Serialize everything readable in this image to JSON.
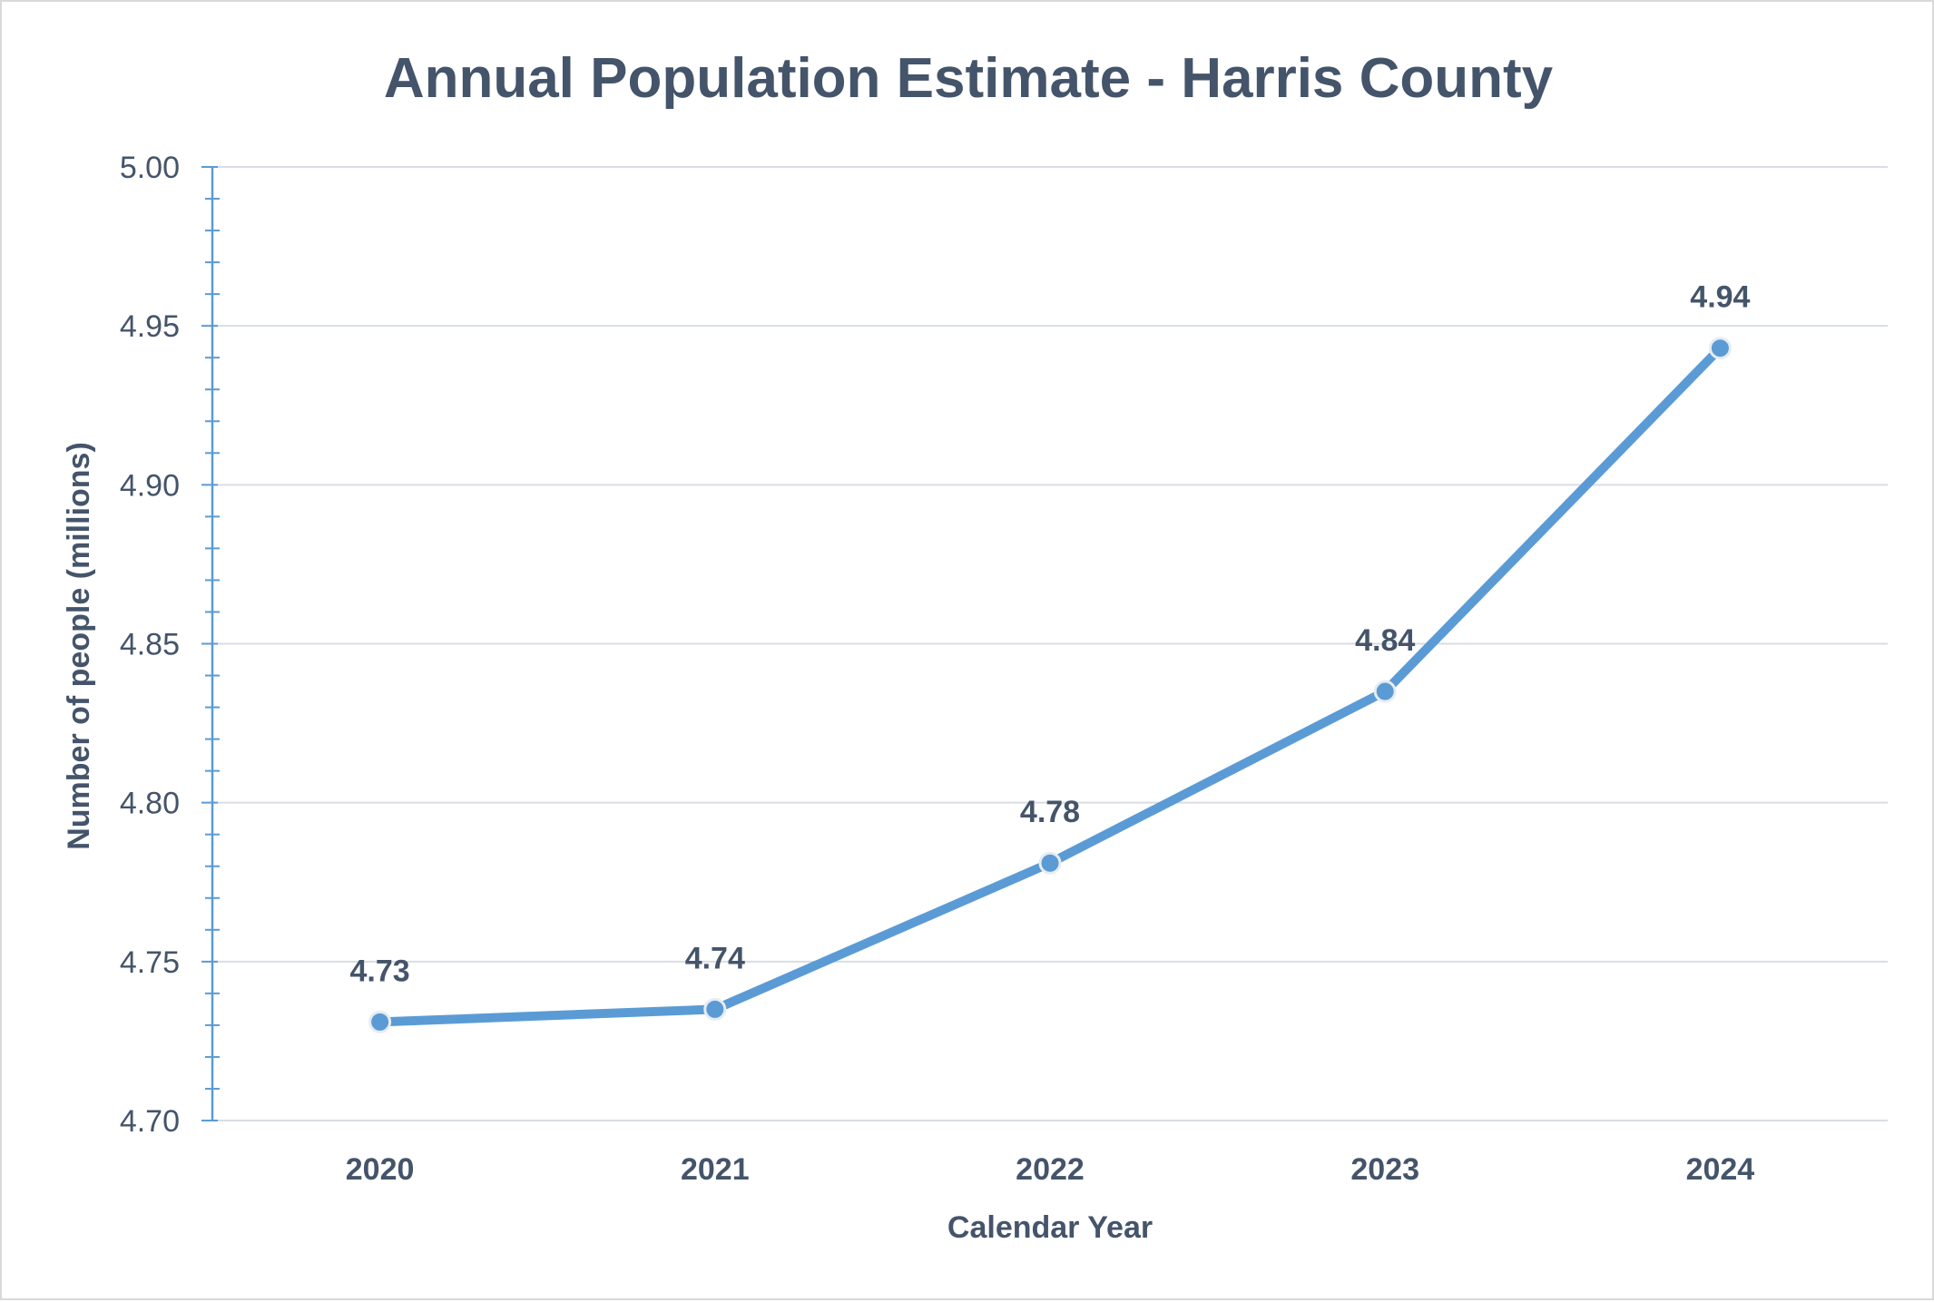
{
  "chart_data": {
    "type": "line",
    "title": "Annual Population Estimate - Harris County",
    "xlabel": "Calendar Year",
    "ylabel": "Number of people (millions)",
    "categories": [
      "2020",
      "2021",
      "2022",
      "2023",
      "2024"
    ],
    "series": [
      {
        "values": [
          4.731,
          4.735,
          4.781,
          4.835,
          4.943
        ],
        "data_labels": [
          "4.73",
          "4.74",
          "4.78",
          "4.84",
          "4.94"
        ]
      }
    ],
    "ylim": [
      4.7,
      5.0
    ],
    "y_ticks": [
      "4.70",
      "4.75",
      "4.80",
      "4.85",
      "4.90",
      "4.95",
      "5.00"
    ],
    "grid": true,
    "legend": "none",
    "colors": {
      "line": "#5b9bd5",
      "text": "#44546a",
      "axis": "#5b9bd5",
      "grid": "#d9dde3",
      "marker_outline": "#e7ecf2"
    }
  }
}
